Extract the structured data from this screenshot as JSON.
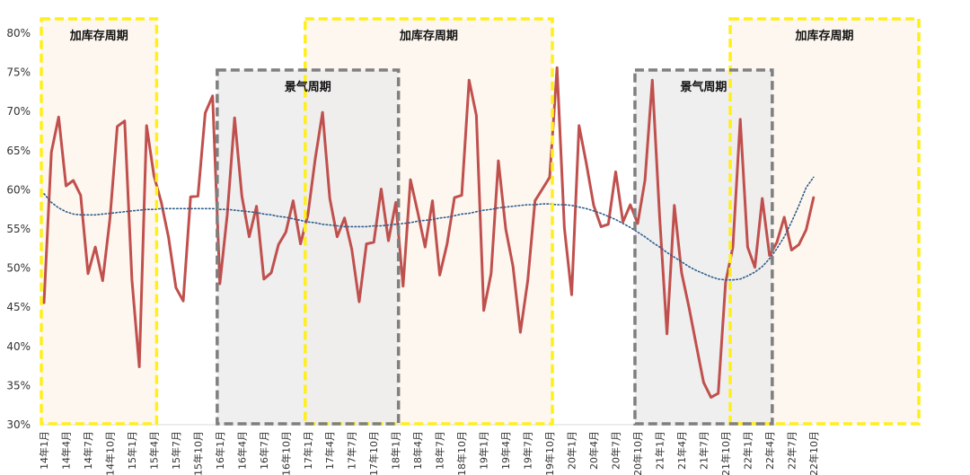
{
  "chart_data": {
    "type": "line",
    "title": "",
    "xlabel": "",
    "ylabel": "",
    "ylim": [
      30,
      80
    ],
    "y_ticks": [
      "30%",
      "35%",
      "40%",
      "45%",
      "50%",
      "55%",
      "60%",
      "65%",
      "70%",
      "75%",
      "80%"
    ],
    "x": [
      "2014-01",
      "2014-02",
      "2014-03",
      "2014-04",
      "2014-05",
      "2014-06",
      "2014-07",
      "2014-08",
      "2014-09",
      "2014-10",
      "2014-11",
      "2014-12",
      "2015-01",
      "2015-02",
      "2015-03",
      "2015-04",
      "2015-05",
      "2015-06",
      "2015-07",
      "2015-08",
      "2015-09",
      "2015-10",
      "2015-11",
      "2015-12",
      "2016-01",
      "2016-02",
      "2016-03",
      "2016-04",
      "2016-05",
      "2016-06",
      "2016-07",
      "2016-08",
      "2016-09",
      "2016-10",
      "2016-11",
      "2016-12",
      "2017-01",
      "2017-02",
      "2017-03",
      "2017-04",
      "2017-05",
      "2017-06",
      "2017-07",
      "2017-08",
      "2017-09",
      "2017-10",
      "2017-11",
      "2017-12",
      "2018-01",
      "2018-02",
      "2018-03",
      "2018-04",
      "2018-05",
      "2018-06",
      "2018-07",
      "2018-08",
      "2018-09",
      "2018-10",
      "2018-11",
      "2018-12",
      "2019-01",
      "2019-02",
      "2019-03",
      "2019-04",
      "2019-05",
      "2019-06",
      "2019-07",
      "2019-08",
      "2019-09",
      "2019-10",
      "2019-11",
      "2019-12",
      "2020-01",
      "2020-02",
      "2020-03",
      "2020-04",
      "2020-05",
      "2020-06",
      "2020-07",
      "2020-08",
      "2020-09",
      "2020-10",
      "2020-11",
      "2020-12",
      "2021-01",
      "2021-02",
      "2021-03",
      "2021-04",
      "2021-05",
      "2021-06",
      "2021-07",
      "2021-08",
      "2021-09",
      "2021-10",
      "2021-11",
      "2021-12",
      "2022-01",
      "2022-02",
      "2022-03",
      "2022-04",
      "2022-05",
      "2022-06",
      "2022-07",
      "2022-08",
      "2022-09",
      "2022-10"
    ],
    "x_tick_labels": [
      "14年1月",
      "14年4月",
      "14年7月",
      "14年10月",
      "15年1月",
      "15年4月",
      "15年7月",
      "15年10月",
      "16年1月",
      "16年4月",
      "16年7月",
      "16年10月",
      "17年1月",
      "17年4月",
      "17年7月",
      "17年10月",
      "18年1月",
      "18年4月",
      "18年7月",
      "18年10月",
      "19年1月",
      "19年4月",
      "19年7月",
      "19年10月",
      "20年1月",
      "20年4月",
      "20年7月",
      "20年10月",
      "21年1月",
      "21年4月",
      "21年7月",
      "21年10月",
      "22年1月",
      "22年4月",
      "22年7月",
      "22年10月"
    ],
    "series": [
      {
        "color": "#c0504d",
        "values": [
          45.6,
          64.8,
          69.3,
          60.5,
          61.2,
          59.3,
          49.3,
          52.7,
          48.4,
          56.3,
          68.1,
          68.8,
          48.5,
          37.4,
          68.2,
          61.8,
          58.4,
          53.9,
          47.5,
          45.8,
          59.1,
          59.2,
          69.8,
          72.0,
          48.0,
          56.8,
          69.2,
          59.2,
          54.0,
          57.9,
          48.6,
          49.4,
          53.0,
          54.6,
          58.6,
          53.1,
          56.8,
          63.9,
          69.9,
          58.9,
          54.0,
          56.4,
          52.4,
          45.7,
          53.1,
          53.3,
          60.1,
          53.5,
          58.4,
          47.7,
          61.3,
          57.1,
          52.7,
          58.6,
          49.1,
          53.1,
          59.0,
          59.3,
          74.0,
          69.5,
          44.6,
          49.3,
          63.7,
          55.0,
          50.2,
          41.8,
          48.4,
          58.6,
          60.1,
          61.6,
          75.6,
          55.1,
          46.6,
          68.2,
          63.4,
          58.0,
          55.3,
          55.6,
          62.3,
          55.9,
          58.1,
          55.7,
          61.2,
          74.0,
          56.6,
          41.6,
          58.0,
          49.4,
          45.0,
          40.2,
          35.4,
          33.5,
          34.0,
          48.2,
          52.7,
          69.0,
          52.7,
          50.1,
          58.9,
          51.6,
          53.3,
          56.5,
          52.3,
          53.0,
          54.9,
          59.0
        ]
      },
      {
        "style": "dotted-trend",
        "color": "#2f5d8a",
        "values": [
          59.5,
          58.4,
          57.7,
          57.2,
          56.9,
          56.8,
          56.8,
          56.8,
          56.9,
          57.0,
          57.1,
          57.2,
          57.3,
          57.4,
          57.5,
          57.5,
          57.6,
          57.6,
          57.6,
          57.6,
          57.6,
          57.6,
          57.6,
          57.6,
          57.5,
          57.5,
          57.4,
          57.3,
          57.2,
          57.1,
          56.9,
          56.8,
          56.6,
          56.5,
          56.3,
          56.1,
          55.9,
          55.8,
          55.6,
          55.5,
          55.4,
          55.3,
          55.3,
          55.3,
          55.3,
          55.4,
          55.4,
          55.5,
          55.6,
          55.7,
          55.8,
          56.0,
          56.1,
          56.2,
          56.4,
          56.5,
          56.7,
          56.9,
          57.0,
          57.2,
          57.4,
          57.5,
          57.7,
          57.8,
          57.9,
          58.0,
          58.1,
          58.1,
          58.2,
          58.2,
          58.1,
          58.1,
          58.0,
          57.8,
          57.6,
          57.3,
          57.0,
          56.6,
          56.2,
          55.7,
          55.2,
          54.6,
          54.0,
          53.3,
          52.7,
          52.0,
          51.4,
          50.8,
          50.2,
          49.7,
          49.3,
          48.9,
          48.6,
          48.5,
          48.5,
          48.6,
          49.0,
          49.5,
          50.2,
          51.2,
          52.5,
          54.0,
          55.9,
          58.0,
          60.3,
          61.6
        ]
      }
    ],
    "regions": [
      {
        "label": "加库存周期",
        "start": "2014-01",
        "end": "2015-04",
        "kind": "inventory"
      },
      {
        "label": "加库存周期",
        "start": "2017-01",
        "end": "2019-10",
        "kind": "inventory"
      },
      {
        "label": "加库存周期",
        "start": "2021-11",
        "end": "2023-12",
        "kind": "inventory"
      },
      {
        "label": "景气周期",
        "start": "2016-01",
        "end": "2018-01",
        "kind": "boom"
      },
      {
        "label": "景气周期",
        "start": "2020-10",
        "end": "2022-04",
        "kind": "boom"
      }
    ],
    "grid": false,
    "legend": "none"
  }
}
